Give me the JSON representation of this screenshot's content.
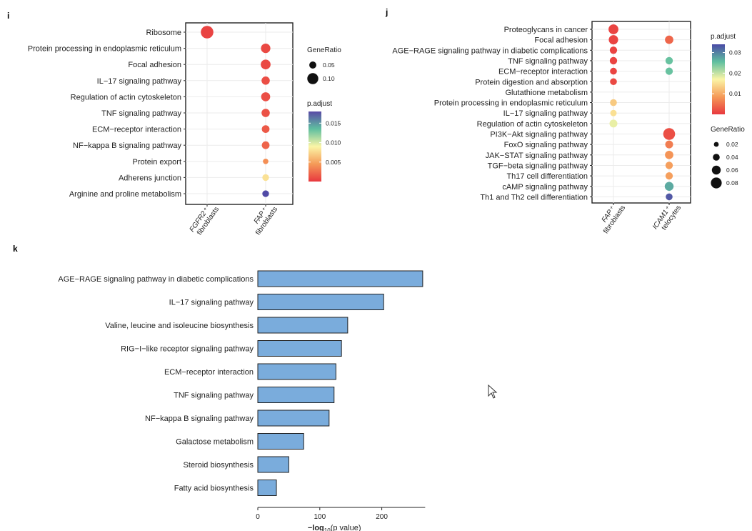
{
  "chart_data": [
    {
      "panel": "i",
      "type": "scatter",
      "categories": [
        "Ribosome",
        "Protein processing in endoplasmic reticulum",
        "Focal adhesion",
        "IL−17 signaling pathway",
        "Regulation of actin cytoskeleton",
        "TNF signaling pathway",
        "ECM−receptor interaction",
        "NF−kappa B signaling pathway",
        "Protein export",
        "Adherens junction",
        "Arginine and proline metabolism"
      ],
      "groups": [
        {
          "line1": "FGFR2⁺",
          "line2": "fibroblasts"
        },
        {
          "line1": "FAP⁺",
          "line2": "fibroblasts"
        }
      ],
      "points": [
        {
          "cat": 0,
          "group": 0,
          "gene_ratio": 0.12,
          "p_adjust": 0.0005
        },
        {
          "cat": 1,
          "group": 1,
          "gene_ratio": 0.08,
          "p_adjust": 0.0008
        },
        {
          "cat": 2,
          "group": 1,
          "gene_ratio": 0.085,
          "p_adjust": 0.0008
        },
        {
          "cat": 3,
          "group": 1,
          "gene_ratio": 0.065,
          "p_adjust": 0.001
        },
        {
          "cat": 4,
          "group": 1,
          "gene_ratio": 0.075,
          "p_adjust": 0.001
        },
        {
          "cat": 5,
          "group": 1,
          "gene_ratio": 0.065,
          "p_adjust": 0.0012
        },
        {
          "cat": 6,
          "group": 1,
          "gene_ratio": 0.058,
          "p_adjust": 0.0015
        },
        {
          "cat": 7,
          "group": 1,
          "gene_ratio": 0.058,
          "p_adjust": 0.002
        },
        {
          "cat": 8,
          "group": 1,
          "gene_ratio": 0.03,
          "p_adjust": 0.004
        },
        {
          "cat": 9,
          "group": 1,
          "gene_ratio": 0.045,
          "p_adjust": 0.008
        },
        {
          "cat": 10,
          "group": 1,
          "gene_ratio": 0.045,
          "p_adjust": 0.018
        }
      ],
      "size_legend": {
        "title": "GeneRatio",
        "values": [
          0.05,
          0.1
        ],
        "labels": [
          "0.05",
          "0.10"
        ]
      },
      "color_legend": {
        "title": "p.adjust",
        "range": [
          0,
          0.018
        ],
        "ticks": [
          0.005,
          0.01,
          0.015
        ],
        "labels": [
          "0.005",
          "0.010",
          "0.015"
        ]
      },
      "grid": true
    },
    {
      "panel": "j",
      "type": "scatter",
      "categories": [
        "Proteoglycans in cancer",
        "Focal adhesion",
        "AGE−RAGE signaling pathway in diabetic complications",
        "TNF signaling pathway",
        "ECM−receptor interaction",
        "Protein digestion and absorption",
        "Glutathione metabolism",
        "Protein processing in endoplasmic reticulum",
        "IL−17 signaling pathway",
        "Regulation of actin cytoskeleton",
        "PI3K−Akt signaling pathway",
        "FoxO signaling pathway",
        "JAK−STAT signaling pathway",
        "TGF−beta signaling pathway",
        "Th17 cell differentiation",
        "cAMP signaling pathway",
        "Th1 and Th2 cell differentiation"
      ],
      "groups": [
        {
          "line1": "FAP⁺",
          "line2": "fibroblasts"
        },
        {
          "line1": "ICAM1⁺",
          "line2": "telocytes"
        }
      ],
      "points": [
        {
          "cat": 0,
          "group": 0,
          "gene_ratio": 0.07,
          "p_adjust": 0.001
        },
        {
          "cat": 1,
          "group": 0,
          "gene_ratio": 0.065,
          "p_adjust": 0.001
        },
        {
          "cat": 1,
          "group": 1,
          "gene_ratio": 0.055,
          "p_adjust": 0.004
        },
        {
          "cat": 2,
          "group": 0,
          "gene_ratio": 0.045,
          "p_adjust": 0.001
        },
        {
          "cat": 3,
          "group": 0,
          "gene_ratio": 0.045,
          "p_adjust": 0.001
        },
        {
          "cat": 3,
          "group": 1,
          "gene_ratio": 0.045,
          "p_adjust": 0.025
        },
        {
          "cat": 4,
          "group": 0,
          "gene_ratio": 0.04,
          "p_adjust": 0.001
        },
        {
          "cat": 4,
          "group": 1,
          "gene_ratio": 0.045,
          "p_adjust": 0.025
        },
        {
          "cat": 5,
          "group": 0,
          "gene_ratio": 0.04,
          "p_adjust": 0.0015
        },
        {
          "cat": 7,
          "group": 0,
          "gene_ratio": 0.04,
          "p_adjust": 0.013
        },
        {
          "cat": 8,
          "group": 0,
          "gene_ratio": 0.035,
          "p_adjust": 0.015
        },
        {
          "cat": 9,
          "group": 0,
          "gene_ratio": 0.05,
          "p_adjust": 0.018
        },
        {
          "cat": 10,
          "group": 1,
          "gene_ratio": 0.09,
          "p_adjust": 0.002
        },
        {
          "cat": 11,
          "group": 1,
          "gene_ratio": 0.05,
          "p_adjust": 0.006
        },
        {
          "cat": 12,
          "group": 1,
          "gene_ratio": 0.055,
          "p_adjust": 0.008
        },
        {
          "cat": 13,
          "group": 1,
          "gene_ratio": 0.045,
          "p_adjust": 0.009
        },
        {
          "cat": 14,
          "group": 1,
          "gene_ratio": 0.045,
          "p_adjust": 0.009
        },
        {
          "cat": 15,
          "group": 1,
          "gene_ratio": 0.06,
          "p_adjust": 0.027
        },
        {
          "cat": 16,
          "group": 1,
          "gene_ratio": 0.04,
          "p_adjust": 0.033
        }
      ],
      "size_legend": {
        "title": "GeneRatio",
        "values": [
          0.02,
          0.04,
          0.06,
          0.08
        ],
        "labels": [
          "0.02",
          "0.04",
          "0.06",
          "0.08"
        ]
      },
      "color_legend": {
        "title": "p.adjust",
        "range": [
          0,
          0.034
        ],
        "ticks": [
          0.01,
          0.02,
          0.03
        ],
        "labels": [
          "0.01",
          "0.02",
          "0.03"
        ]
      },
      "grid": true
    },
    {
      "panel": "k",
      "type": "bar",
      "orientation": "horizontal",
      "categories": [
        "AGE−RAGE signaling pathway in diabetic complications",
        "IL−17 signaling pathway",
        "Valine, leucine and isoleucine biosynthesis",
        "RIG−I−like receptor signaling pathway",
        "ECM−receptor interaction",
        "TNF signaling pathway",
        "NF−kappa B signaling pathway",
        "Galactose metabolism",
        "Steroid biosynthesis",
        "Fatty acid biosynthesis"
      ],
      "values": [
        266,
        203,
        145,
        135,
        126,
        123,
        115,
        74,
        50,
        30
      ],
      "xlim": [
        0,
        270
      ],
      "x_ticks": [
        0,
        100,
        200
      ],
      "x_tick_labels": [
        "0",
        "100",
        "200"
      ],
      "xlabel_main": "−log",
      "xlabel_sub": "10",
      "xlabel_tail": "(p value)",
      "bar_color": "#7aacdc",
      "grid": false
    }
  ]
}
